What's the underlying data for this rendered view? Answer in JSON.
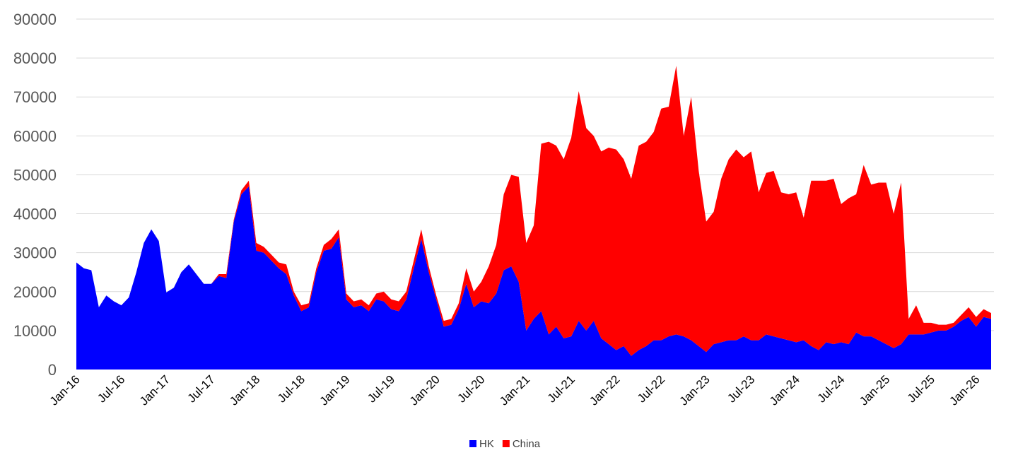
{
  "chart_data": {
    "type": "area",
    "stacked": true,
    "title": "",
    "xlabel": "",
    "ylabel": "",
    "ylim": [
      0,
      90000
    ],
    "y_ticks": [
      0,
      10000,
      20000,
      30000,
      40000,
      50000,
      60000,
      70000,
      80000,
      90000
    ],
    "x_tick_labels": [
      "Jan-16",
      "Jul-16",
      "Jan-17",
      "Jul-17",
      "Jan-18",
      "Jul-18",
      "Jan-19",
      "Jul-19",
      "Jan-20",
      "Jul-20",
      "Jan-21",
      "Jul-21",
      "Jan-22",
      "Jul-22",
      "Jan-23",
      "Jul-23",
      "Jan-24",
      "Jul-24",
      "Jan-25",
      "Jul-25",
      "Jan-26"
    ],
    "x_start": "Jan-16",
    "x_end": "Mar-26",
    "grid": true,
    "legend_position": "bottom-center",
    "series": [
      {
        "name": "HK",
        "color": "#0000ff",
        "values": [
          27500,
          26000,
          25500,
          16000,
          19000,
          17500,
          16500,
          18500,
          25000,
          32500,
          36000,
          33000,
          19800,
          21000,
          25000,
          27000,
          24500,
          22000,
          22000,
          24000,
          23500,
          38000,
          45000,
          47000,
          30500,
          30000,
          28000,
          26000,
          24500,
          19000,
          15000,
          16000,
          25000,
          30500,
          31000,
          34000,
          18000,
          16000,
          16500,
          15000,
          18000,
          17500,
          15500,
          15000,
          18000,
          26000,
          33500,
          25000,
          18000,
          11000,
          11500,
          15500,
          22000,
          16000,
          17500,
          17000,
          19500,
          25500,
          26500,
          22500,
          10000,
          13000,
          15000,
          9000,
          11000,
          8000,
          8500,
          12500,
          10000,
          12500,
          8000,
          6500,
          5000,
          6000,
          3500,
          5000,
          6000,
          7500,
          7500,
          8500,
          9000,
          8500,
          7500,
          6000,
          4500,
          6500,
          7000,
          7500,
          7500,
          8500,
          7500,
          7500,
          9000,
          8500,
          8000,
          7500,
          7000,
          7500,
          6000,
          5000,
          7000,
          6500,
          7000,
          6500,
          9500,
          8500,
          8500,
          7500,
          6500,
          5500,
          6500,
          9000,
          9000,
          9000,
          9500,
          10000,
          10000,
          11000,
          12500,
          13500,
          11000,
          13500,
          13000
        ]
      },
      {
        "name": "China",
        "color": "#ff0000",
        "values": [
          0,
          0,
          0,
          0,
          0,
          0,
          0,
          0,
          0,
          0,
          0,
          0,
          0,
          0,
          0,
          0,
          0,
          0,
          0,
          500,
          1000,
          500,
          1000,
          1500,
          2000,
          1500,
          1500,
          1500,
          2500,
          1000,
          1500,
          1000,
          1000,
          1500,
          2500,
          2000,
          1500,
          1500,
          1500,
          1500,
          1500,
          2500,
          2500,
          2500,
          2000,
          2000,
          2500,
          1500,
          1000,
          1500,
          1500,
          1500,
          4000,
          4000,
          5000,
          9500,
          12500,
          19500,
          23500,
          27000,
          22500,
          24000,
          43000,
          49500,
          46500,
          46000,
          51000,
          59000,
          52000,
          47500,
          48000,
          50500,
          51500,
          48000,
          45500,
          52500,
          52500,
          53500,
          59500,
          59000,
          69000,
          51500,
          62500,
          45000,
          33500,
          34000,
          42000,
          46500,
          49000,
          46000,
          48500,
          38000,
          41500,
          42500,
          37500,
          37500,
          38500,
          31500,
          42500,
          43500,
          41500,
          42500,
          35500,
          37500,
          35500,
          44000,
          39000,
          40500,
          41500,
          34500,
          41500,
          4000,
          7500,
          3000,
          2500,
          1500,
          1500,
          1000,
          1500,
          2500,
          2500,
          2000,
          1500
        ]
      }
    ]
  }
}
